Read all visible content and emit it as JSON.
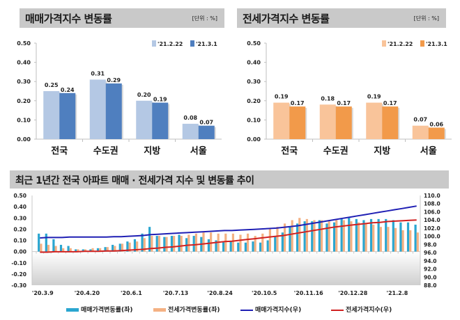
{
  "panels": [
    {
      "title": "매매가격지수 변동률",
      "unit": "[단위 : %]"
    },
    {
      "title": "전세가격지수 변동률",
      "unit": "[단위 : %]"
    },
    {
      "title": "최근 1년간 전국 아파트 매매 · 전세가격 지수 및 변동률 추이"
    }
  ],
  "chart_data": [
    {
      "type": "bar",
      "title": "매매가격지수 변동률",
      "unit": "[단위 : %]",
      "categories": [
        "전국",
        "수도권",
        "지방",
        "서울"
      ],
      "series": [
        {
          "name": "'21.2.22",
          "values": [
            0.25,
            0.31,
            0.2,
            0.08
          ],
          "color": "#b4c8e4"
        },
        {
          "name": "'21.3.1",
          "values": [
            0.24,
            0.29,
            0.19,
            0.07
          ],
          "color": "#4f7fbf"
        }
      ],
      "value_labels": [
        [
          "0.25",
          "0.31",
          "0.20",
          "0.08"
        ],
        [
          "0.24",
          "0.29",
          "0.19",
          "0.07"
        ]
      ],
      "ylim": [
        0,
        0.5
      ],
      "yticks": [
        "0.00",
        "0.10",
        "0.20",
        "0.30",
        "0.40",
        "0.50"
      ],
      "legend": "top-right"
    },
    {
      "type": "bar",
      "title": "전세가격지수 변동률",
      "unit": "[단위 : %]",
      "categories": [
        "전국",
        "수도권",
        "지방",
        "서울"
      ],
      "series": [
        {
          "name": "'21.2.22",
          "values": [
            0.19,
            0.18,
            0.19,
            0.07
          ],
          "color": "#f9c49a"
        },
        {
          "name": "'21.3.1",
          "values": [
            0.17,
            0.17,
            0.17,
            0.06
          ],
          "color": "#f29a4a"
        }
      ],
      "value_labels": [
        [
          "0.19",
          "0.18",
          "0.19",
          "0.07"
        ],
        [
          "0.17",
          "0.17",
          "0.17",
          "0.06"
        ]
      ],
      "ylim": [
        0,
        0.5
      ],
      "yticks": [
        "0.00",
        "0.10",
        "0.20",
        "0.30",
        "0.40",
        "0.50"
      ],
      "legend": "top-right"
    },
    {
      "type": "bar+line",
      "title": "최근 1년간 전국 아파트 매매 · 전세가격 지수 및 변동률 추이",
      "x_tick_labels": [
        "'20.3.9",
        "'20.4.20",
        "'20.6.1",
        "'20.7.13",
        "'20.8.24",
        "'20.10.5",
        "'20.11.16",
        "'20.12.28",
        "'21.2.8"
      ],
      "x_tick_every_weeks": 6,
      "weeks": 52,
      "left_axis": {
        "ylim": [
          -0.3,
          0.5
        ],
        "ticks": [
          "-0.30",
          "-0.20",
          "-0.10",
          "0.00",
          "0.10",
          "0.20",
          "0.30",
          "0.40",
          "0.50"
        ]
      },
      "right_axis": {
        "ylim": [
          88.0,
          110.0
        ],
        "ticks": [
          "88.0",
          "90.0",
          "92.0",
          "94.0",
          "96.0",
          "98.0",
          "100.0",
          "102.0",
          "104.0",
          "106.0",
          "108.0",
          "110.0"
        ]
      },
      "series": [
        {
          "name": "매매가격변동률(좌)",
          "axis": "left",
          "kind": "bar",
          "color": "#2aa6d0",
          "values": [
            0.16,
            0.16,
            0.11,
            0.06,
            0.05,
            0.02,
            0.02,
            0.02,
            0.03,
            0.04,
            0.06,
            0.07,
            0.09,
            0.11,
            0.16,
            0.22,
            0.14,
            0.13,
            0.14,
            0.15,
            0.12,
            0.14,
            0.13,
            0.11,
            0.1,
            0.09,
            0.09,
            0.08,
            0.08,
            0.09,
            0.08,
            0.1,
            0.14,
            0.17,
            0.22,
            0.25,
            0.27,
            0.27,
            0.28,
            0.25,
            0.26,
            0.29,
            0.3,
            0.29,
            0.28,
            0.29,
            0.29,
            0.29,
            0.28,
            0.26,
            0.26,
            0.24
          ]
        },
        {
          "name": "전세가격변동률(좌)",
          "axis": "left",
          "kind": "bar",
          "color": "#f4b183",
          "values": [
            0.07,
            0.06,
            0.05,
            0.03,
            0.03,
            0.02,
            0.02,
            0.03,
            0.03,
            0.04,
            0.05,
            0.07,
            0.08,
            0.09,
            0.12,
            0.14,
            0.14,
            0.13,
            0.14,
            0.14,
            0.15,
            0.16,
            0.17,
            0.17,
            0.16,
            0.16,
            0.16,
            0.15,
            0.16,
            0.14,
            0.16,
            0.21,
            0.22,
            0.25,
            0.28,
            0.3,
            0.29,
            0.28,
            0.28,
            0.27,
            0.28,
            0.28,
            0.27,
            0.26,
            0.25,
            0.24,
            0.22,
            0.22,
            0.21,
            0.19,
            0.19,
            0.17
          ]
        },
        {
          "name": "매매가격지수(우)",
          "axis": "right",
          "kind": "line",
          "color": "#1f1fb4",
          "values": [
            99.6,
            99.7,
            99.7,
            99.7,
            99.8,
            99.8,
            99.8,
            99.8,
            99.8,
            99.8,
            99.9,
            99.9,
            100.0,
            100.1,
            100.2,
            100.4,
            100.5,
            100.6,
            100.7,
            100.8,
            100.9,
            101.0,
            101.1,
            101.2,
            101.3,
            101.4,
            101.4,
            101.5,
            101.6,
            101.7,
            101.8,
            101.9,
            102.0,
            102.2,
            102.4,
            102.6,
            102.9,
            103.2,
            103.5,
            103.8,
            104.1,
            104.4,
            104.7,
            105.0,
            105.3,
            105.6,
            105.9,
            106.2,
            106.5,
            106.8,
            107.1,
            107.4
          ]
        },
        {
          "name": "전세가격지수(우)",
          "axis": "right",
          "kind": "line",
          "color": "#d02020",
          "values": [
            96.1,
            96.1,
            96.2,
            96.2,
            96.2,
            96.2,
            96.3,
            96.3,
            96.3,
            96.4,
            96.4,
            96.5,
            96.6,
            96.7,
            96.8,
            97.0,
            97.1,
            97.3,
            97.4,
            97.6,
            97.8,
            97.9,
            98.1,
            98.3,
            98.5,
            98.7,
            98.8,
            99.0,
            99.2,
            99.4,
            99.6,
            99.8,
            100.0,
            100.2,
            100.5,
            100.8,
            101.1,
            101.4,
            101.7,
            102.0,
            102.3,
            102.5,
            102.7,
            102.9,
            103.1,
            103.3,
            103.4,
            103.6,
            103.7,
            103.8,
            103.9,
            104.0
          ]
        }
      ],
      "legend": "bottom"
    }
  ]
}
